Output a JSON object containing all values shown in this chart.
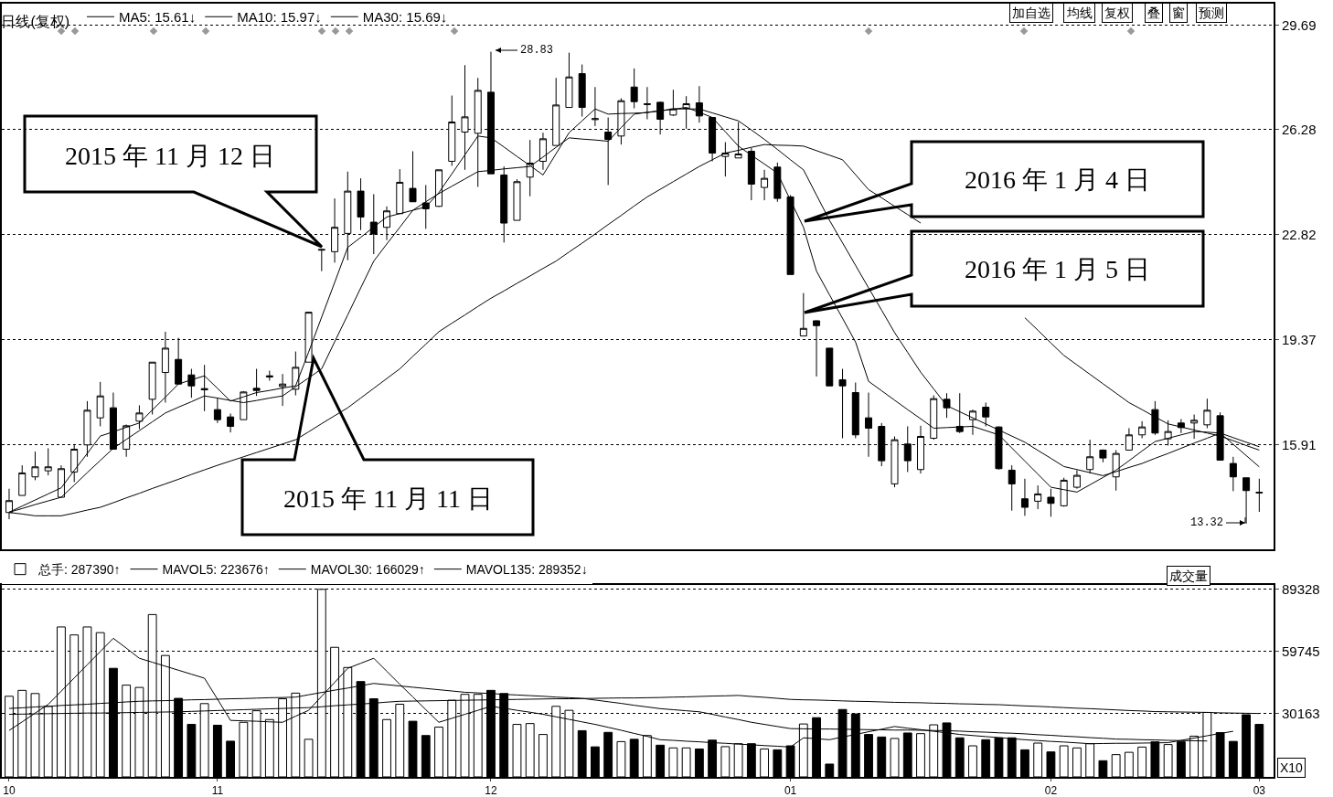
{
  "chart_data": [
    {
      "type": "candlestick",
      "title": "日线(复权)",
      "categories": [
        "10",
        null,
        null,
        null,
        null,
        null,
        null,
        null,
        null,
        null,
        null,
        null,
        null,
        null,
        null,
        null,
        "11",
        null,
        null,
        null,
        null,
        null,
        null,
        null,
        null,
        null,
        null,
        null,
        null,
        null,
        null,
        null,
        null,
        null,
        null,
        null,
        null,
        "12",
        null,
        null,
        null,
        null,
        null,
        null,
        null,
        null,
        null,
        null,
        null,
        null,
        null,
        null,
        null,
        null,
        null,
        null,
        null,
        null,
        null,
        null,
        "01",
        null,
        null,
        null,
        null,
        null,
        null,
        null,
        null,
        null,
        null,
        null,
        null,
        null,
        null,
        null,
        null,
        null,
        null,
        null,
        "02",
        null,
        null,
        null,
        null,
        null,
        null,
        null,
        null,
        null,
        null,
        null,
        null,
        null,
        null,
        null,
        "03"
      ],
      "ohlc": [
        [
          13.69,
          14.47,
          13.47,
          14.08
        ],
        [
          14.25,
          15.24,
          14.25,
          14.99
        ],
        [
          14.86,
          15.69,
          14.75,
          15.19
        ],
        [
          15.06,
          15.8,
          14.91,
          15.19
        ],
        [
          14.19,
          15.24,
          14.19,
          15.13
        ],
        [
          15.02,
          15.94,
          14.69,
          15.77
        ],
        [
          15.91,
          17.35,
          15.52,
          17.05
        ],
        [
          16.8,
          17.98,
          16.52,
          17.52
        ],
        [
          17.13,
          17.63,
          15.77,
          15.77
        ],
        [
          15.77,
          16.58,
          15.52,
          16.54
        ],
        [
          16.69,
          17.21,
          16.43,
          16.96
        ],
        [
          17.41,
          18.63,
          16.91,
          18.63
        ],
        [
          18.29,
          19.63,
          17.3,
          19.09
        ],
        [
          18.72,
          19.43,
          17.91,
          17.91
        ],
        [
          18.21,
          18.41,
          17.46,
          17.85
        ],
        [
          17.76,
          18.54,
          17.02,
          17.72
        ],
        [
          17.07,
          17.46,
          16.63,
          16.74
        ],
        [
          16.83,
          16.94,
          16.32,
          16.52
        ],
        [
          16.74,
          17.68,
          16.74,
          17.65
        ],
        [
          17.77,
          18.41,
          17.52,
          17.7
        ],
        [
          18.14,
          18.35,
          18.02,
          18.18
        ],
        [
          17.83,
          18.24,
          17.19,
          17.91
        ],
        [
          17.74,
          18.98,
          17.54,
          18.46
        ],
        [
          18.63,
          20.29,
          18.63,
          20.27
        ],
        [
          22.31,
          22.34,
          21.62,
          22.33
        ],
        [
          22.26,
          24.01,
          21.9,
          23.06
        ],
        [
          22.86,
          24.89,
          21.98,
          24.25
        ],
        [
          24.25,
          24.67,
          22.97,
          23.4
        ],
        [
          23.23,
          24.15,
          22.18,
          22.84
        ],
        [
          23.06,
          23.75,
          22.64,
          23.6
        ],
        [
          23.51,
          24.97,
          23.51,
          24.54
        ],
        [
          24.34,
          25.56,
          23.9,
          23.9
        ],
        [
          23.86,
          24.45,
          23.01,
          23.67
        ],
        [
          23.75,
          24.95,
          23.73,
          24.95
        ],
        [
          25.23,
          27.39,
          25.08,
          26.52
        ],
        [
          26.19,
          28.39,
          24.95,
          26.69
        ],
        [
          26.15,
          27.97,
          24.39,
          27.56
        ],
        [
          27.5,
          28.83,
          24.82,
          24.82
        ],
        [
          24.78,
          25.06,
          22.56,
          23.2
        ],
        [
          23.29,
          24.64,
          23.29,
          24.56
        ],
        [
          24.71,
          25.93,
          24.08,
          25.17
        ],
        [
          25.23,
          26.17,
          24.95,
          25.97
        ],
        [
          25.75,
          27.97,
          25.75,
          27.08
        ],
        [
          27.0,
          28.8,
          27.0,
          28.0
        ],
        [
          28.11,
          28.41,
          26.7,
          27.0
        ],
        [
          26.6,
          27.67,
          26.39,
          26.63
        ],
        [
          26.19,
          26.67,
          24.45,
          25.95
        ],
        [
          26.06,
          27.3,
          25.78,
          27.22
        ],
        [
          27.67,
          28.28,
          26.97,
          27.19
        ],
        [
          27.12,
          27.67,
          26.61,
          27.1
        ],
        [
          27.17,
          27.19,
          26.11,
          26.61
        ],
        [
          26.75,
          27.58,
          26.72,
          26.95
        ],
        [
          26.97,
          27.37,
          26.3,
          27.12
        ],
        [
          27.15,
          27.7,
          26.5,
          26.72
        ],
        [
          26.67,
          26.67,
          25.23,
          25.5
        ],
        [
          25.39,
          25.86,
          24.73,
          25.5
        ],
        [
          25.34,
          26.52,
          25.34,
          25.47
        ],
        [
          25.56,
          25.67,
          23.95,
          24.48
        ],
        [
          24.37,
          24.95,
          23.95,
          24.67
        ],
        [
          25.04,
          25.19,
          23.9,
          24.01
        ],
        [
          24.06,
          24.12,
          21.51,
          21.51
        ],
        [
          19.49,
          20.9,
          19.49,
          19.74
        ],
        [
          19.99,
          20.0,
          18.16,
          19.83
        ],
        [
          19.09,
          19.09,
          17.85,
          17.85
        ],
        [
          18.05,
          18.41,
          16.13,
          17.85
        ],
        [
          17.63,
          17.96,
          16.13,
          16.24
        ],
        [
          16.8,
          17.63,
          15.52,
          16.46
        ],
        [
          16.52,
          16.63,
          15.21,
          15.39
        ],
        [
          14.63,
          16.19,
          14.52,
          16.08
        ],
        [
          15.94,
          16.52,
          15.02,
          15.39
        ],
        [
          15.1,
          16.54,
          14.97,
          16.19
        ],
        [
          16.13,
          17.54,
          16.08,
          17.43
        ],
        [
          17.41,
          17.61,
          16.8,
          17.13
        ],
        [
          16.52,
          17.61,
          16.3,
          16.35
        ],
        [
          16.74,
          17.07,
          16.24,
          17.02
        ],
        [
          17.15,
          17.3,
          16.52,
          16.83
        ],
        [
          16.5,
          16.52,
          15.1,
          15.13
        ],
        [
          15.08,
          15.24,
          13.75,
          14.63
        ],
        [
          14.14,
          14.8,
          13.58,
          13.86
        ],
        [
          14.06,
          14.58,
          13.8,
          14.3
        ],
        [
          14.19,
          14.47,
          13.55,
          13.99
        ],
        [
          13.91,
          14.83,
          13.88,
          14.75
        ],
        [
          14.52,
          15.08,
          14.47,
          14.91
        ],
        [
          15.1,
          16.08,
          14.97,
          15.52
        ],
        [
          15.74,
          15.76,
          15.34,
          15.48
        ],
        [
          14.86,
          15.74,
          14.41,
          15.63
        ],
        [
          15.74,
          16.46,
          15.74,
          16.24
        ],
        [
          16.24,
          16.69,
          16.13,
          16.5
        ],
        [
          17.07,
          17.35,
          16.24,
          16.3
        ],
        [
          16.11,
          16.72,
          15.89,
          16.35
        ],
        [
          16.63,
          16.76,
          16.3,
          16.48
        ],
        [
          16.63,
          16.91,
          16.11,
          16.72
        ],
        [
          16.57,
          17.43,
          16.46,
          17.05
        ],
        [
          16.87,
          16.98,
          15.41,
          15.41
        ],
        [
          15.3,
          15.52,
          14.39,
          14.86
        ],
        [
          14.83,
          14.83,
          13.32,
          14.41
        ],
        [
          14.33,
          14.8,
          13.71,
          14.35
        ]
      ],
      "series": [
        {
          "name": "MA5: 15.61↓",
          "type": "line",
          "color": "#000000",
          "values": [
            13.7,
            13.9,
            14.1,
            14.3,
            14.5,
            15.07,
            15.63,
            16.2,
            16.34,
            16.49,
            16.63,
            17.06,
            17.48,
            17.91,
            18.05,
            18.18,
            17.77,
            17.35,
            17.49,
            17.63,
            17.7,
            17.78,
            17.85,
            18.96,
            20.11,
            21.25,
            22.4,
            22.73,
            23.07,
            23.4,
            23.51,
            23.62,
            23.73,
            24.2,
            24.82,
            25.44,
            26.06,
            26.0,
            25.7,
            25.39,
            25.09,
            24.78,
            25.48,
            26.17,
            26.56,
            26.95,
            26.78,
            26.8,
            26.81,
            26.83,
            26.89,
            26.94,
            27.0,
            26.84,
            26.67,
            26.2,
            25.73,
            25.43,
            25.14,
            24.84,
            23.95,
            23.06,
            21.62,
            20.84,
            20.07,
            19.29,
            18.0,
            17.69,
            17.38,
            17.07,
            16.77,
            16.46,
            16.48,
            16.5,
            16.52,
            16.38,
            16.24,
            15.81,
            15.38,
            14.95,
            14.52,
            14.44,
            14.36,
            14.6,
            14.84,
            15.08,
            15.39,
            15.71,
            16.02,
            16.13,
            16.24,
            16.35,
            16.33,
            16.3,
            15.93,
            15.56,
            15.19
          ]
        },
        {
          "name": "MA10: 15.97↓",
          "type": "line",
          "color": "#000000",
          "values": [
            13.7,
            13.82,
            13.95,
            14.07,
            14.19,
            14.59,
            15.0,
            15.4,
            15.8,
            16.09,
            16.38,
            16.67,
            16.96,
            17.15,
            17.33,
            17.52,
            17.45,
            17.37,
            17.3,
            17.37,
            17.45,
            17.52,
            17.82,
            18.11,
            18.41,
            19.3,
            20.18,
            21.07,
            21.95,
            22.51,
            23.06,
            23.62,
            23.9,
            24.17,
            24.41,
            24.65,
            24.89,
            24.93,
            24.98,
            25.02,
            25.06,
            25.37,
            25.69,
            26.0,
            25.96,
            25.93,
            25.89,
            26.34,
            26.78,
            26.84,
            26.89,
            26.95,
            26.95,
            26.95,
            26.82,
            26.69,
            26.56,
            26.26,
            25.95,
            25.62,
            25.28,
            24.95,
            24.12,
            23.29,
            22.55,
            21.81,
            21.07,
            20.34,
            19.6,
            18.95,
            18.3,
            17.75,
            17.2,
            17.0,
            16.8,
            16.6,
            16.4,
            16.2,
            16.0,
            15.73,
            15.47,
            15.2,
            15.1,
            15.0,
            14.9,
            15.03,
            15.17,
            15.3,
            15.47,
            15.63,
            15.8,
            15.97,
            16.13,
            16.3,
            16.15,
            16.0,
            15.85
          ]
        },
        {
          "name": "MA30: 15.69↓",
          "type": "line",
          "color": "#000000",
          "values": [
            13.69,
            13.64,
            13.58,
            13.58,
            13.58,
            13.67,
            13.77,
            13.86,
            14.01,
            14.17,
            14.32,
            14.48,
            14.63,
            14.78,
            14.94,
            15.09,
            15.24,
            15.38,
            15.52,
            15.66,
            15.8,
            15.94,
            16.08,
            16.34,
            16.61,
            16.87,
            17.13,
            17.45,
            17.77,
            18.09,
            18.41,
            18.82,
            19.22,
            19.63,
            19.91,
            20.18,
            20.46,
            20.73,
            20.97,
            21.22,
            21.46,
            21.71,
            21.95,
            22.25,
            22.54,
            22.84,
            23.15,
            23.45,
            23.76,
            24.06,
            24.31,
            24.56,
            24.81,
            25.06,
            25.28,
            25.5,
            25.59,
            25.69,
            25.78,
            25.76,
            25.75,
            25.73,
            25.58,
            25.43,
            25.28,
            24.79,
            24.3,
            24.03,
            23.75,
            23.48,
            23.2,
            null,
            null,
            null,
            null,
            null,
            null,
            null,
            20.09,
            19.68,
            19.26,
            18.85,
            18.54,
            18.23,
            17.92,
            17.61,
            17.3,
            17.07,
            16.83,
            16.6,
            16.5,
            16.4,
            16.3,
            16.2,
            16.05,
            15.89,
            15.74
          ]
        }
      ],
      "ylim": [
        12.48,
        30.41
      ],
      "yticks": [
        15.91,
        19.37,
        22.82,
        26.28,
        29.69
      ],
      "tick_labels": "y",
      "grid": "y",
      "legend": "top left",
      "annotations": [
        "2015 年 11 月 12 日",
        "2015 年 11 月 11 日",
        "2016 年 1 月 4 日",
        "2016 年 1 月 5 日",
        "28.83",
        "13.32",
        "加自选",
        "均线",
        "复权",
        "叠",
        "窗",
        "预测"
      ]
    },
    {
      "type": "bar",
      "categories": [
        "10",
        null,
        null,
        null,
        null,
        null,
        null,
        null,
        null,
        null,
        null,
        null,
        null,
        null,
        null,
        null,
        "11",
        null,
        null,
        null,
        null,
        null,
        null,
        null,
        null,
        null,
        null,
        null,
        null,
        null,
        null,
        null,
        null,
        null,
        null,
        null,
        null,
        "12",
        null,
        null,
        null,
        null,
        null,
        null,
        null,
        null,
        null,
        null,
        null,
        null,
        null,
        null,
        null,
        null,
        null,
        null,
        null,
        null,
        null,
        null,
        "01",
        null,
        null,
        null,
        null,
        null,
        null,
        null,
        null,
        null,
        null,
        null,
        null,
        null,
        null,
        null,
        null,
        null,
        null,
        null,
        "02",
        null,
        null,
        null,
        null,
        null,
        null,
        null,
        null,
        null,
        null,
        null,
        null,
        null,
        null,
        null,
        "03"
      ],
      "series": [
        {
          "name": "总手: 287390↑",
          "colors": [
            "#ffffff",
            "#ffffff",
            "#ffffff",
            "#ffffff",
            "#ffffff",
            "#ffffff",
            "#ffffff",
            "#ffffff",
            "#000000",
            "#ffffff",
            "#ffffff",
            "#ffffff",
            "#ffffff",
            "#000000",
            "#000000",
            "#ffffff",
            "#000000",
            "#000000",
            "#ffffff",
            "#ffffff",
            "#ffffff",
            "#ffffff",
            "#ffffff",
            "#ffffff",
            "#ffffff",
            "#ffffff",
            "#ffffff",
            "#000000",
            "#000000",
            "#ffffff",
            "#ffffff",
            "#000000",
            "#000000",
            "#ffffff",
            "#ffffff",
            "#ffffff",
            "#ffffff",
            "#000000",
            "#000000",
            "#ffffff",
            "#ffffff",
            "#ffffff",
            "#ffffff",
            "#ffffff",
            "#000000",
            "#000000",
            "#000000",
            "#ffffff",
            "#000000",
            "#ffffff",
            "#000000",
            "#ffffff",
            "#ffffff",
            "#000000",
            "#000000",
            "#ffffff",
            "#ffffff",
            "#000000",
            "#ffffff",
            "#000000",
            "#000000",
            "#ffffff",
            "#000000",
            "#000000",
            "#000000",
            "#000000",
            "#000000",
            "#000000",
            "#ffffff",
            "#000000",
            "#ffffff",
            "#ffffff",
            "#000000",
            "#000000",
            "#ffffff",
            "#000000",
            "#000000",
            "#000000",
            "#000000",
            "#ffffff",
            "#000000",
            "#ffffff",
            "#ffffff",
            "#ffffff",
            "#000000",
            "#ffffff",
            "#ffffff",
            "#ffffff",
            "#000000",
            "#ffffff",
            "#000000",
            "#ffffff",
            "#ffffff",
            "#000000",
            "#000000",
            "#000000",
            "#000000"
          ],
          "values": [
            38400,
            41200,
            39700,
            33600,
            71400,
            67600,
            71400,
            68700,
            51700,
            43700,
            42600,
            77300,
            57800,
            37400,
            25000,
            34900,
            24600,
            17000,
            26000,
            31500,
            27300,
            37200,
            39900,
            17900,
            89300,
            61700,
            52100,
            45400,
            37200,
            27300,
            34600,
            26500,
            19700,
            23700,
            36500,
            39300,
            39300,
            41200,
            39700,
            25000,
            25400,
            20200,
            33600,
            31700,
            22000,
            14300,
            21200,
            16800,
            17900,
            19700,
            15100,
            13800,
            13800,
            13300,
            17500,
            14400,
            15800,
            15800,
            13300,
            12900,
            14800,
            25200,
            28200,
            6100,
            32100,
            30000,
            20200,
            19000,
            18300,
            20900,
            20600,
            24800,
            25700,
            18600,
            14800,
            17700,
            18600,
            18600,
            12900,
            16100,
            11900,
            14800,
            13800,
            15800,
            7700,
            10600,
            11700,
            14200,
            16700,
            15400,
            16700,
            19400,
            30700,
            21100,
            16900,
            29600,
            25000
          ]
        },
        {
          "name": "MAVOL5: 223676↑",
          "type": "line",
          "color": "#000000",
          "values": [
            22100,
            26200,
            30400,
            34500,
            40800,
            47100,
            53400,
            59700,
            66000,
            61300,
            56500,
            54600,
            52700,
            50800,
            48900,
            47000,
            37000,
            26900,
            26700,
            26500,
            26200,
            26000,
            28900,
            31700,
            38400,
            45000,
            51700,
            54100,
            56500,
            50300,
            44100,
            38100,
            32000,
            26000,
            27900,
            29800,
            31700,
            33600,
            32700,
            31700,
            30800,
            29800,
            28600,
            27400,
            26200,
            25000,
            23600,
            22200,
            20700,
            19300,
            17700,
            17400,
            17000,
            16700,
            16300,
            16000,
            15600,
            15300,
            14900,
            14600,
            14200,
            18600,
            18200,
            17700,
            19000,
            20200,
            21500,
            22700,
            24000,
            23200,
            22500,
            21700,
            21000,
            20200,
            19700,
            19200,
            18700,
            18200,
            17700,
            17300,
            16900,
            16600,
            16200,
            15800,
            15900,
            16000,
            16000,
            16100,
            16200,
            16300,
            17400,
            18500,
            19600,
            20700,
            21700,
            null,
            null
          ]
        },
        {
          "name": "MAVOL30: 166029↑",
          "type": "line",
          "color": "#000000",
          "values": [
            32600,
            32900,
            33300,
            33600,
            34000,
            34300,
            34600,
            35000,
            35300,
            35700,
            36000,
            36200,
            36300,
            36500,
            36700,
            36800,
            37000,
            37200,
            37300,
            37500,
            37700,
            37800,
            38000,
            39100,
            40200,
            41300,
            42300,
            43400,
            44500,
            43900,
            43300,
            42700,
            42100,
            41500,
            40900,
            40300,
            40000,
            39700,
            39300,
            39000,
            38700,
            38400,
            38000,
            37700,
            37400,
            36600,
            35800,
            35000,
            34100,
            33300,
            32500,
            32000,
            31500,
            31000,
            29800,
            28500,
            27300,
            26000,
            25000,
            24000,
            23000,
            22900,
            22800,
            22800,
            22700,
            22600,
            22500,
            22400,
            22300,
            22300,
            22200,
            22100,
            22000,
            21800,
            21500,
            21300,
            21000,
            20800,
            20500,
            20100,
            19800,
            19400,
            19100,
            18700,
            18400,
            18000,
            17900,
            17700,
            17600,
            17400,
            17300,
            17200,
            17100,
            null,
            null,
            null,
            null
          ]
        },
        {
          "name": "MAVOL135: 289352↓",
          "type": "line",
          "color": "#000000",
          "values": [
            29800,
            29900,
            30000,
            30100,
            30200,
            30300,
            30400,
            30400,
            30500,
            30600,
            30700,
            30800,
            30900,
            31000,
            31200,
            31400,
            31600,
            31800,
            32000,
            32200,
            32400,
            32600,
            32800,
            33000,
            33400,
            33900,
            34300,
            34700,
            35100,
            35600,
            36000,
            36100,
            36200,
            36300,
            36400,
            36500,
            36600,
            36700,
            36800,
            36900,
            37000,
            37100,
            37200,
            37200,
            37300,
            37400,
            37500,
            37600,
            37600,
            37700,
            37800,
            38000,
            38100,
            38300,
            38500,
            38600,
            38800,
            38300,
            37900,
            37400,
            36900,
            36700,
            36600,
            36400,
            36200,
            36000,
            35900,
            35700,
            35500,
            35400,
            35300,
            35100,
            35000,
            34800,
            34700,
            34500,
            34400,
            34100,
            33800,
            33600,
            33300,
            33000,
            32700,
            32500,
            32200,
            31900,
            31600,
            31400,
            31100,
            31000,
            30900,
            30800,
            30700,
            30500,
            30400,
            30300,
            30200
          ]
        }
      ],
      "ylim": [
        0,
        91400
      ],
      "yticks": [
        30163,
        59745,
        89328
      ],
      "grid": "y",
      "legend": "top left",
      "annotations": [
        "成交量",
        "X10"
      ]
    }
  ]
}
